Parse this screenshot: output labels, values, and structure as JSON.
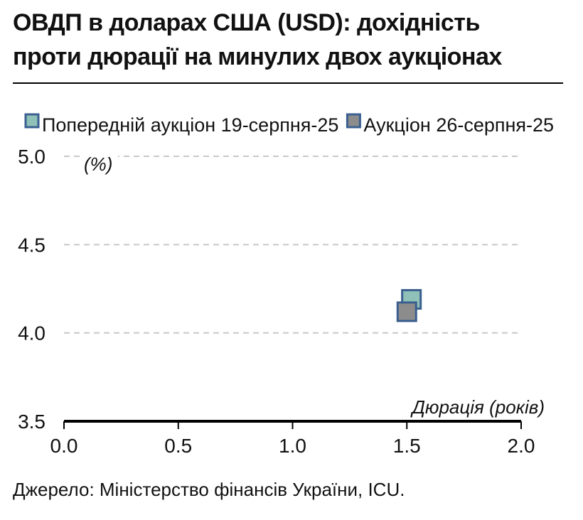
{
  "header": {
    "title_line1": "ОВДП в доларах США (USD): дохідність",
    "title_line2": "проти дюрації на минулих двох аукціонах"
  },
  "footer": {
    "source": "Джерело: Міністерство фінансів України, ICU."
  },
  "chart_data": {
    "type": "scatter",
    "ylabel": "(%)",
    "xlabel": "Дюрація (років)",
    "xlim": [
      0.0,
      2.0
    ],
    "ylim": [
      3.5,
      5.0
    ],
    "x_ticks": [
      "0.0",
      "0.5",
      "1.0",
      "1.5",
      "2.0"
    ],
    "y_ticks": [
      "3.5",
      "4.0",
      "4.5",
      "5.0"
    ],
    "grid": "horizontal-dashed",
    "legend_position": "top",
    "series": [
      {
        "name": "Попередній аукціон 19-серпня-25",
        "color": "#8fc1b8",
        "points": [
          {
            "x": 1.52,
            "y": 4.19
          }
        ]
      },
      {
        "name": "Аукціон 26-серпня-25",
        "color": "#8c8c8c",
        "points": [
          {
            "x": 1.5,
            "y": 4.12
          }
        ]
      }
    ],
    "marker_edge_color": "#3a5f8f"
  }
}
